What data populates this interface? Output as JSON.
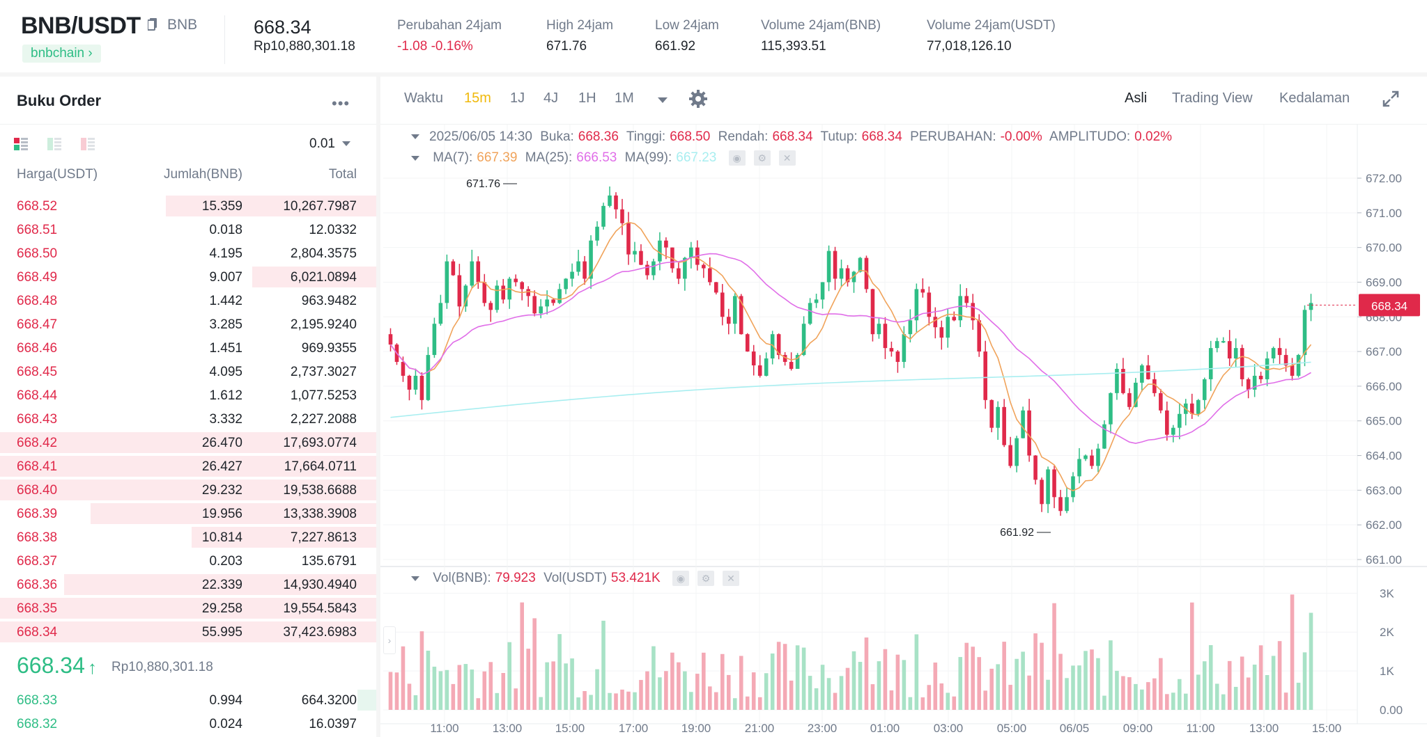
{
  "header": {
    "pair": "BNB/USDT",
    "base_asset": "BNB",
    "chain_badge": "bnbchain",
    "last_price": "668.34",
    "last_price_idr": "Rp10,880,301.18",
    "stats": [
      {
        "label": "Perubahan 24jam",
        "value": "-1.08 -0.16%",
        "tone": "neg"
      },
      {
        "label": "High 24jam",
        "value": "671.76",
        "tone": ""
      },
      {
        "label": "Low 24jam",
        "value": "661.92",
        "tone": ""
      },
      {
        "label": "Volume 24jam(BNB)",
        "value": "115,393.51",
        "tone": ""
      },
      {
        "label": "Volume 24jam(USDT)",
        "value": "77,018,126.10",
        "tone": ""
      }
    ]
  },
  "orderbook": {
    "title": "Buku Order",
    "more": "•••",
    "precision": "0.01",
    "columns": {
      "price": "Harga(USDT)",
      "qty": "Jumlah(BNB)",
      "total": "Total"
    },
    "asks": [
      {
        "price": "668.52",
        "qty": "15.359",
        "total": "10,267.7987",
        "depth": 0.56
      },
      {
        "price": "668.51",
        "qty": "0.018",
        "total": "12.0332",
        "depth": 0.0
      },
      {
        "price": "668.50",
        "qty": "4.195",
        "total": "2,804.3575",
        "depth": 0.0
      },
      {
        "price": "668.49",
        "qty": "9.007",
        "total": "6,021.0894",
        "depth": 0.33
      },
      {
        "price": "668.48",
        "qty": "1.442",
        "total": "963.9482",
        "depth": 0.0
      },
      {
        "price": "668.47",
        "qty": "3.285",
        "total": "2,195.9240",
        "depth": 0.0
      },
      {
        "price": "668.46",
        "qty": "1.451",
        "total": "969.9355",
        "depth": 0.0
      },
      {
        "price": "668.45",
        "qty": "4.095",
        "total": "2,737.3027",
        "depth": 0.0
      },
      {
        "price": "668.44",
        "qty": "1.612",
        "total": "1,077.5253",
        "depth": 0.0
      },
      {
        "price": "668.43",
        "qty": "3.332",
        "total": "2,227.2088",
        "depth": 0.0
      },
      {
        "price": "668.42",
        "qty": "26.470",
        "total": "17,693.0774",
        "depth": 1.0
      },
      {
        "price": "668.41",
        "qty": "26.427",
        "total": "17,664.0711",
        "depth": 1.0
      },
      {
        "price": "668.40",
        "qty": "29.232",
        "total": "19,538.6688",
        "depth": 1.0
      },
      {
        "price": "668.39",
        "qty": "19.956",
        "total": "13,338.3908",
        "depth": 0.76
      },
      {
        "price": "668.38",
        "qty": "10.814",
        "total": "7,227.8613",
        "depth": 0.49
      },
      {
        "price": "668.37",
        "qty": "0.203",
        "total": "135.6791",
        "depth": 0.0
      },
      {
        "price": "668.36",
        "qty": "22.339",
        "total": "14,930.4940",
        "depth": 0.83
      },
      {
        "price": "668.35",
        "qty": "29.258",
        "total": "19,554.5843",
        "depth": 1.0
      },
      {
        "price": "668.34",
        "qty": "55.995",
        "total": "37,423.6983",
        "depth": 1.0
      }
    ],
    "mid_price": "668.34",
    "mid_arrow": "↑",
    "mid_price_idr": "Rp10,880,301.18",
    "bids": [
      {
        "price": "668.33",
        "qty": "0.994",
        "total": "664.3200",
        "depth": 0.05
      },
      {
        "price": "668.32",
        "qty": "0.024",
        "total": "16.0397",
        "depth": 0.0
      }
    ]
  },
  "chart_panel": {
    "toolbar": {
      "time_label": "Waktu",
      "intervals": [
        "15m",
        "1J",
        "4J",
        "1H",
        "1M"
      ],
      "active_interval": "15m",
      "views": [
        "Asli",
        "Trading View",
        "Kedalaman"
      ],
      "active_view": "Asli"
    },
    "ohlc": {
      "date": "2025/06/05 14:30",
      "open_label": "Buka:",
      "open": "668.36",
      "high_label": "Tinggi:",
      "high": "668.50",
      "low_label": "Rendah:",
      "low": "668.34",
      "close_label": "Tutup:",
      "close": "668.34",
      "change_label": "PERUBAHAN:",
      "change": "-0.00%",
      "amp_label": "AMPLITUDO:",
      "amp": "0.02%"
    },
    "ma": {
      "ma7_label": "MA(7):",
      "ma7": "667.39",
      "ma25_label": "MA(25):",
      "ma25": "666.53",
      "ma99_label": "MA(99):",
      "ma99": "667.23"
    },
    "vol": {
      "bnb_label": "Vol(BNB):",
      "bnb": "79.923",
      "usdt_label": "Vol(USDT)",
      "usdt": "53.421K"
    },
    "colors": {
      "up": "#2ebd85",
      "down": "#e0294a",
      "ma7": "#f0a35a",
      "ma25": "#e06ee8",
      "ma99": "#a8eef0"
    }
  },
  "chart_data": {
    "type": "candlestick",
    "x_ticks": [
      "11:00",
      "13:00",
      "15:00",
      "17:00",
      "19:00",
      "21:00",
      "23:00",
      "01:00",
      "03:00",
      "05:00",
      "06/05",
      "09:00",
      "11:00",
      "13:00",
      "15:00"
    ],
    "y_ticks": [
      "672.00",
      "671.00",
      "670.00",
      "669.00",
      "668.00",
      "667.00",
      "666.00",
      "665.00",
      "664.00",
      "663.00",
      "662.00",
      "661.00"
    ],
    "ylim": [
      661,
      672
    ],
    "vol_ticks": [
      "3K",
      "2K",
      "1K",
      "0.00"
    ],
    "vol_ylim": [
      0,
      3400
    ],
    "max_label": "671.76",
    "min_label": "661.92",
    "current_price_tag": "668.34",
    "closes": [
      667.2,
      666.7,
      666.3,
      665.9,
      666.3,
      665.6,
      666.9,
      667.8,
      668.4,
      669.6,
      669.2,
      668.3,
      668.9,
      669.6,
      669.0,
      668.4,
      668.2,
      668.9,
      668.5,
      669.1,
      669.0,
      668.8,
      668.6,
      668.1,
      668.3,
      668.5,
      668.4,
      668.8,
      669.1,
      669.3,
      669.6,
      669.1,
      670.2,
      670.6,
      671.2,
      671.5,
      671.1,
      670.7,
      669.8,
      669.9,
      669.5,
      669.2,
      669.6,
      670.2,
      670.0,
      669.4,
      669.1,
      669.7,
      670.0,
      669.5,
      669.4,
      669.0,
      668.7,
      668.0,
      667.8,
      668.6,
      667.5,
      667.0,
      666.6,
      666.3,
      666.8,
      667.5,
      666.9,
      666.7,
      666.5,
      666.9,
      667.8,
      668.4,
      668.5,
      669.0,
      669.9,
      669.1,
      669.4,
      669.0,
      669.3,
      669.7,
      668.8,
      667.5,
      667.8,
      667.1,
      667.0,
      666.7,
      667.5,
      667.9,
      668.8,
      668.7,
      668.0,
      667.7,
      667.4,
      668.0,
      667.9,
      668.6,
      668.4,
      667.9,
      667.0,
      665.6,
      664.8,
      665.4,
      664.3,
      663.7,
      664.5,
      665.3,
      664.0,
      663.3,
      662.6,
      663.6,
      662.8,
      662.4,
      662.8,
      663.4,
      663.9,
      664.0,
      663.7,
      664.2,
      664.9,
      665.8,
      666.5,
      665.8,
      665.4,
      666.1,
      666.6,
      666.2,
      665.8,
      665.3,
      664.6,
      664.8,
      665.2,
      665.5,
      665.2,
      665.6,
      666.2,
      667.1,
      667.3,
      667.3,
      666.8,
      667.1,
      666.2,
      665.9,
      666.3,
      666.2,
      666.8,
      667.1,
      666.9,
      666.6,
      666.3,
      666.9,
      668.2,
      668.4
    ]
  }
}
